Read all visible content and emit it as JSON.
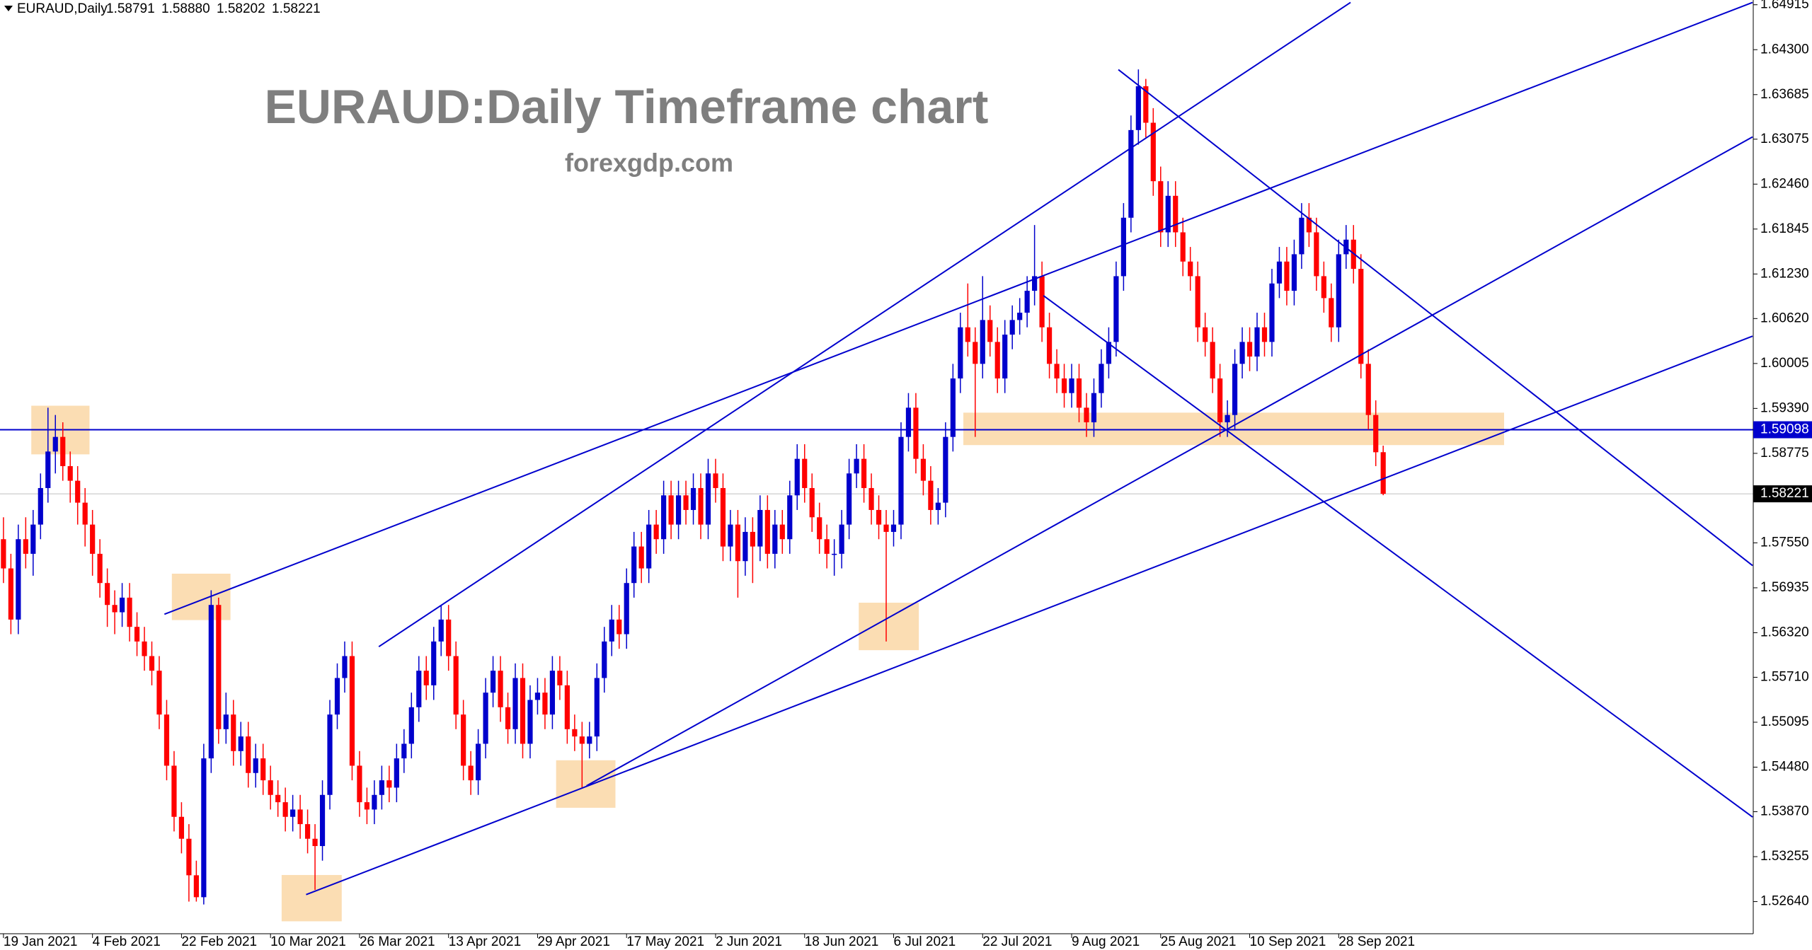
{
  "chart_data": {
    "type": "candlestick",
    "symbol": "EURAUD,Daily",
    "header_values": [
      1.58791,
      {
        "value": 1.5888,
        "label": "1.58880"
      },
      1.58202,
      1.58221
    ],
    "title": "EURAUD:Daily Timeframe chart",
    "subtitle": "forexgdp.com",
    "up_color": "#0000cc",
    "down_color": "#ff0000",
    "line_color": "#0000cd",
    "zone_color": "#fad7a6",
    "grid": false,
    "ylim": [
      1.522,
      1.6498
    ],
    "yticks": [
      1.64915,
      {
        "value": 1.643,
        "label": "1.64300"
      },
      1.63685,
      1.63075,
      {
        "value": 1.6246,
        "label": "1.62460"
      },
      1.61845,
      {
        "value": 1.6123,
        "label": "1.61230"
      },
      {
        "value": 1.6062,
        "label": "1.60620"
      },
      1.60005,
      {
        "value": 1.5939,
        "label": "1.59390"
      },
      1.58775,
      {
        "value": 1.5755,
        "label": "1.57550"
      },
      1.56935,
      {
        "value": 1.5632,
        "label": "1.56320"
      },
      {
        "value": 1.5571,
        "label": "1.55710"
      },
      1.55095,
      {
        "value": 1.5448,
        "label": "1.54480"
      },
      {
        "value": 1.5387,
        "label": "1.53870"
      },
      1.53255,
      {
        "value": 1.5264,
        "label": "1.52640"
      }
    ],
    "hlines": [
      {
        "value": 1.59098,
        "color": "#0000cd"
      }
    ],
    "current_price": 1.58221,
    "categories": [
      "19 Jan 2021",
      null,
      null,
      null,
      null,
      null,
      null,
      null,
      null,
      null,
      null,
      null,
      "4 Feb 2021",
      null,
      null,
      null,
      null,
      null,
      null,
      null,
      null,
      null,
      null,
      null,
      "22 Feb 2021",
      null,
      null,
      null,
      null,
      null,
      null,
      null,
      null,
      null,
      null,
      null,
      "10 Mar 2021",
      null,
      null,
      null,
      null,
      null,
      null,
      null,
      null,
      null,
      null,
      null,
      "26 Mar 2021",
      null,
      null,
      null,
      null,
      null,
      null,
      null,
      null,
      null,
      null,
      null,
      "13 Apr 2021",
      null,
      null,
      null,
      null,
      null,
      null,
      null,
      null,
      null,
      null,
      null,
      "29 Apr 2021",
      null,
      null,
      null,
      null,
      null,
      null,
      null,
      null,
      null,
      null,
      null,
      "17 May 2021",
      null,
      null,
      null,
      null,
      null,
      null,
      null,
      null,
      null,
      null,
      null,
      "2 Jun 2021",
      null,
      null,
      null,
      null,
      null,
      null,
      null,
      null,
      null,
      null,
      null,
      "18 Jun 2021",
      null,
      null,
      null,
      null,
      null,
      null,
      null,
      null,
      null,
      null,
      null,
      "6 Jul 2021",
      null,
      null,
      null,
      null,
      null,
      null,
      null,
      null,
      null,
      null,
      null,
      "22 Jul 2021",
      null,
      null,
      null,
      null,
      null,
      null,
      null,
      null,
      null,
      null,
      null,
      "9 Aug 2021",
      null,
      null,
      null,
      null,
      null,
      null,
      null,
      null,
      null,
      null,
      null,
      "25 Aug 2021",
      null,
      null,
      null,
      null,
      null,
      null,
      null,
      null,
      null,
      null,
      null,
      "10 Sep 2021",
      null,
      null,
      null,
      null,
      null,
      null,
      null,
      null,
      null,
      null,
      null,
      "28 Sep 2021",
      null,
      null,
      null,
      null,
      null,
      null
    ],
    "candles": [
      [
        1.576,
        1.579,
        1.57,
        1.572
      ],
      [
        1.572,
        1.574,
        1.563,
        1.565
      ],
      [
        1.565,
        1.578,
        1.563,
        1.576
      ],
      [
        1.576,
        1.579,
        1.572,
        1.574
      ],
      [
        1.574,
        1.58,
        1.571,
        1.578
      ],
      [
        1.578,
        1.585,
        1.576,
        1.583
      ],
      [
        1.583,
        1.594,
        1.581,
        1.588
      ],
      [
        1.588,
        1.593,
        1.585,
        1.59
      ],
      [
        1.59,
        1.592,
        1.584,
        1.586
      ],
      [
        1.586,
        1.588,
        1.581,
        1.584
      ],
      [
        1.584,
        1.586,
        1.578,
        1.581
      ],
      [
        1.581,
        1.583,
        1.575,
        1.578
      ],
      [
        1.578,
        1.58,
        1.571,
        1.574
      ],
      [
        1.574,
        1.576,
        1.568,
        1.57
      ],
      [
        1.57,
        1.572,
        1.564,
        1.567
      ],
      [
        1.567,
        1.569,
        1.563,
        1.566
      ],
      [
        1.566,
        1.57,
        1.564,
        1.568
      ],
      [
        1.568,
        1.57,
        1.562,
        1.564
      ],
      [
        1.564,
        1.566,
        1.56,
        1.562
      ],
      [
        1.562,
        1.564,
        1.558,
        1.56
      ],
      [
        1.56,
        1.562,
        1.556,
        1.558
      ],
      [
        1.558,
        1.56,
        1.55,
        1.552
      ],
      [
        1.552,
        1.554,
        1.543,
        1.545
      ],
      [
        1.545,
        1.547,
        1.536,
        1.538
      ],
      [
        1.538,
        1.54,
        1.533,
        1.535
      ],
      [
        1.535,
        1.537,
        1.5264,
        1.53
      ],
      [
        1.53,
        1.532,
        1.5264,
        1.527
      ],
      [
        1.527,
        1.548,
        1.526,
        1.546
      ],
      [
        1.546,
        1.569,
        1.544,
        1.567
      ],
      [
        1.567,
        1.568,
        1.548,
        1.55
      ],
      [
        1.55,
        1.555,
        1.548,
        1.552
      ],
      [
        1.552,
        1.554,
        1.545,
        1.547
      ],
      [
        1.547,
        1.551,
        1.545,
        1.549
      ],
      [
        1.549,
        1.551,
        1.542,
        1.544
      ],
      [
        1.544,
        1.548,
        1.542,
        1.546
      ],
      [
        1.546,
        1.548,
        1.541,
        1.543
      ],
      [
        1.543,
        1.545,
        1.539,
        1.541
      ],
      [
        1.541,
        1.543,
        1.538,
        1.54
      ],
      [
        1.54,
        1.542,
        1.536,
        1.538
      ],
      [
        1.538,
        1.541,
        1.536,
        1.539
      ],
      [
        1.539,
        1.541,
        1.535,
        1.537
      ],
      [
        1.537,
        1.539,
        1.533,
        1.535
      ],
      [
        1.535,
        1.537,
        1.528,
        1.534
      ],
      [
        1.534,
        1.543,
        1.532,
        1.541
      ],
      [
        1.541,
        1.554,
        1.539,
        1.552
      ],
      [
        1.552,
        1.559,
        1.55,
        1.557
      ],
      [
        1.557,
        1.562,
        1.555,
        1.56
      ],
      [
        1.56,
        1.562,
        1.543,
        1.545
      ],
      [
        1.545,
        1.547,
        1.538,
        1.54
      ],
      [
        1.54,
        1.542,
        1.537,
        1.539
      ],
      [
        1.539,
        1.543,
        1.537,
        1.541
      ],
      [
        1.541,
        1.545,
        1.539,
        1.543
      ],
      [
        1.543,
        1.545,
        1.54,
        1.542
      ],
      [
        1.542,
        1.548,
        1.54,
        1.546
      ],
      [
        1.546,
        1.55,
        1.544,
        1.548
      ],
      [
        1.548,
        1.555,
        1.546,
        1.553
      ],
      [
        1.553,
        1.56,
        1.551,
        1.558
      ],
      [
        1.558,
        1.56,
        1.554,
        1.556
      ],
      [
        1.556,
        1.564,
        1.554,
        1.562
      ],
      [
        1.562,
        1.567,
        1.56,
        1.565
      ],
      [
        1.565,
        1.567,
        1.558,
        1.56
      ],
      [
        1.56,
        1.562,
        1.55,
        1.552
      ],
      [
        1.552,
        1.554,
        1.543,
        1.545
      ],
      [
        1.545,
        1.547,
        1.541,
        1.543
      ],
      [
        1.543,
        1.55,
        1.541,
        1.548
      ],
      [
        1.548,
        1.557,
        1.546,
        1.555
      ],
      [
        1.555,
        1.56,
        1.553,
        1.558
      ],
      [
        1.558,
        1.56,
        1.551,
        1.553
      ],
      [
        1.553,
        1.555,
        1.548,
        1.55
      ],
      [
        1.55,
        1.559,
        1.548,
        1.557
      ],
      [
        1.557,
        1.559,
        1.546,
        1.548
      ],
      [
        1.548,
        1.556,
        1.546,
        1.554
      ],
      [
        1.554,
        1.557,
        1.552,
        1.555
      ],
      [
        1.555,
        1.557,
        1.55,
        1.552
      ],
      [
        1.552,
        1.56,
        1.55,
        1.558
      ],
      [
        1.558,
        1.56,
        1.554,
        1.556
      ],
      [
        1.556,
        1.558,
        1.548,
        1.55
      ],
      [
        1.55,
        1.552,
        1.547,
        1.549
      ],
      [
        1.549,
        1.551,
        1.542,
        1.548
      ],
      [
        1.548,
        1.551,
        1.546,
        1.549
      ],
      [
        1.549,
        1.559,
        1.547,
        1.557
      ],
      [
        1.557,
        1.564,
        1.555,
        1.562
      ],
      [
        1.562,
        1.567,
        1.56,
        1.565
      ],
      [
        1.565,
        1.567,
        1.561,
        1.563
      ],
      [
        1.563,
        1.572,
        1.561,
        1.57
      ],
      [
        1.57,
        1.577,
        1.568,
        1.575
      ],
      [
        1.575,
        1.577,
        1.57,
        1.572
      ],
      [
        1.572,
        1.58,
        1.57,
        1.578
      ],
      [
        1.578,
        1.58,
        1.574,
        1.576
      ],
      [
        1.576,
        1.584,
        1.574,
        1.582
      ],
      [
        1.582,
        1.584,
        1.576,
        1.578
      ],
      [
        1.578,
        1.584,
        1.576,
        1.582
      ],
      [
        1.582,
        1.584,
        1.578,
        1.58
      ],
      [
        1.58,
        1.585,
        1.578,
        1.583
      ],
      [
        1.583,
        1.585,
        1.576,
        1.578
      ],
      [
        1.578,
        1.587,
        1.576,
        1.585
      ],
      [
        1.585,
        1.587,
        1.581,
        1.583
      ],
      [
        1.583,
        1.585,
        1.573,
        1.575
      ],
      [
        1.575,
        1.58,
        1.573,
        1.578
      ],
      [
        1.578,
        1.58,
        1.568,
        1.573
      ],
      [
        1.573,
        1.579,
        1.571,
        1.577
      ],
      [
        1.577,
        1.579,
        1.57,
        1.575
      ],
      [
        1.575,
        1.582,
        1.573,
        1.58
      ],
      [
        1.58,
        1.582,
        1.572,
        1.574
      ],
      [
        1.574,
        1.58,
        1.572,
        1.578
      ],
      [
        1.578,
        1.58,
        1.574,
        1.576
      ],
      [
        1.576,
        1.584,
        1.574,
        1.582
      ],
      [
        1.582,
        1.589,
        1.58,
        1.587
      ],
      [
        1.587,
        1.589,
        1.581,
        1.583
      ],
      [
        1.583,
        1.585,
        1.577,
        1.579
      ],
      [
        1.579,
        1.581,
        1.574,
        1.576
      ],
      [
        1.576,
        1.578,
        1.572,
        1.574
      ],
      [
        1.574,
        1.576,
        1.571,
        1.574
      ],
      [
        1.574,
        1.58,
        1.572,
        1.578
      ],
      [
        1.578,
        1.587,
        1.576,
        1.585
      ],
      [
        1.585,
        1.589,
        1.583,
        1.587
      ],
      [
        1.587,
        1.589,
        1.581,
        1.583
      ],
      [
        1.583,
        1.585,
        1.578,
        1.58
      ],
      [
        1.58,
        1.582,
        1.576,
        1.578
      ],
      [
        1.578,
        1.58,
        1.562,
        1.577
      ],
      [
        1.577,
        1.58,
        1.575,
        1.578
      ],
      [
        1.578,
        1.592,
        1.576,
        1.59
      ],
      [
        1.59,
        1.596,
        1.588,
        1.594
      ],
      [
        1.594,
        1.596,
        1.585,
        1.587
      ],
      [
        1.587,
        1.589,
        1.582,
        1.584
      ],
      [
        1.584,
        1.586,
        1.578,
        1.58
      ],
      [
        1.58,
        1.583,
        1.578,
        1.581
      ],
      [
        1.581,
        1.592,
        1.579,
        1.59
      ],
      [
        1.59,
        1.6,
        1.588,
        1.598
      ],
      [
        1.598,
        1.607,
        1.596,
        1.605
      ],
      [
        1.605,
        1.611,
        1.601,
        1.603
      ],
      [
        1.603,
        1.605,
        1.59,
        1.6
      ],
      [
        1.6,
        1.612,
        1.598,
        1.606
      ],
      [
        1.606,
        1.608,
        1.601,
        1.603
      ],
      [
        1.603,
        1.605,
        1.596,
        1.598
      ],
      [
        1.598,
        1.606,
        1.596,
        1.604
      ],
      [
        1.604,
        1.608,
        1.602,
        1.606
      ],
      [
        1.606,
        1.609,
        1.604,
        1.607
      ],
      [
        1.607,
        1.612,
        1.605,
        1.61
      ],
      [
        1.61,
        1.619,
        1.608,
        1.612
      ],
      [
        1.612,
        1.614,
        1.603,
        1.605
      ],
      [
        1.605,
        1.607,
        1.598,
        1.6
      ],
      [
        1.6,
        1.602,
        1.596,
        1.598
      ],
      [
        1.598,
        1.6,
        1.594,
        1.596
      ],
      [
        1.596,
        1.6,
        1.594,
        1.598
      ],
      [
        1.598,
        1.6,
        1.592,
        1.594
      ],
      [
        1.594,
        1.596,
        1.59,
        1.592
      ],
      [
        1.592,
        1.598,
        1.59,
        1.596
      ],
      [
        1.596,
        1.602,
        1.594,
        1.6
      ],
      [
        1.6,
        1.605,
        1.598,
        1.603
      ],
      [
        1.603,
        1.614,
        1.601,
        1.612
      ],
      [
        1.612,
        1.622,
        1.61,
        1.62
      ],
      [
        1.62,
        1.634,
        1.618,
        1.632
      ],
      [
        1.632,
        1.6403,
        1.63,
        1.638
      ],
      [
        1.638,
        1.639,
        1.631,
        1.633
      ],
      [
        1.633,
        1.635,
        1.623,
        1.625
      ],
      [
        1.625,
        1.627,
        1.616,
        1.618
      ],
      [
        1.618,
        1.625,
        1.616,
        1.623
      ],
      [
        1.623,
        1.625,
        1.616,
        1.618
      ],
      [
        1.618,
        1.62,
        1.612,
        1.614
      ],
      [
        1.614,
        1.616,
        1.61,
        1.612
      ],
      [
        1.612,
        1.614,
        1.603,
        1.605
      ],
      [
        1.605,
        1.607,
        1.601,
        1.603
      ],
      [
        1.603,
        1.605,
        1.596,
        1.598
      ],
      [
        1.598,
        1.6,
        1.59,
        1.592
      ],
      [
        1.592,
        1.595,
        1.59,
        1.593
      ],
      [
        1.593,
        1.602,
        1.591,
        1.6
      ],
      [
        1.6,
        1.605,
        1.598,
        1.603
      ],
      [
        1.603,
        1.605,
        1.599,
        1.601
      ],
      [
        1.601,
        1.607,
        1.599,
        1.605
      ],
      [
        1.605,
        1.607,
        1.601,
        1.603
      ],
      [
        1.603,
        1.613,
        1.601,
        1.611
      ],
      [
        1.611,
        1.616,
        1.609,
        1.614
      ],
      [
        1.614,
        1.616,
        1.608,
        1.61
      ],
      [
        1.61,
        1.617,
        1.608,
        1.615
      ],
      [
        1.615,
        1.622,
        1.613,
        1.62
      ],
      [
        1.62,
        1.622,
        1.616,
        1.618
      ],
      [
        1.618,
        1.62,
        1.61,
        1.612
      ],
      [
        1.612,
        1.614,
        1.607,
        1.609
      ],
      [
        1.609,
        1.611,
        1.603,
        1.605
      ],
      [
        1.605,
        1.617,
        1.603,
        1.615
      ],
      [
        1.615,
        1.619,
        1.613,
        1.617
      ],
      [
        1.617,
        1.619,
        1.611,
        1.613
      ],
      [
        1.613,
        1.615,
        1.598,
        1.6
      ],
      [
        1.6,
        1.602,
        1.591,
        1.593
      ],
      [
        1.593,
        1.595,
        1.586,
        1.5879
      ],
      [
        1.58791,
        1.5888,
        1.58202,
        1.58221
      ]
    ],
    "trendlines": [
      {
        "x": [
          21.7,
          235.8
        ],
        "y": [
          1.56573,
          1.64947
        ]
      },
      {
        "x": [
          50.6,
          181.6
        ],
        "y": [
          1.56129,
          1.64947
        ]
      },
      {
        "x": [
          40.8,
          235.8
        ],
        "y": [
          1.52735,
          1.60379
        ]
      },
      {
        "x": [
          78.6,
          235.8
        ],
        "y": [
          1.54225,
          1.63107
        ]
      },
      {
        "x": [
          150.3,
          235.8
        ],
        "y": [
          1.64027,
          1.57239
        ]
      },
      {
        "x": [
          140.2,
          235.8
        ],
        "y": [
          1.60934,
          1.53797
        ]
      }
    ],
    "zones": [
      {
        "x": [
          3.75,
          11.6
        ],
        "y": [
          1.59427,
          1.58761
        ]
      },
      {
        "x": [
          22.7,
          30.6
        ],
        "y": [
          1.57128,
          1.56493
        ]
      },
      {
        "x": [
          37.5,
          45.6
        ],
        "y": [
          1.53004,
          1.5237
        ]
      },
      {
        "x": [
          74.5,
          82.5
        ],
        "y": [
          1.54574,
          1.53924
        ]
      },
      {
        "x": [
          115.3,
          123.4
        ],
        "y": [
          1.56731,
          1.56081
        ]
      },
      {
        "x": [
          129.4,
          202.3
        ],
        "y": [
          1.59332,
          1.58888
        ]
      }
    ]
  }
}
